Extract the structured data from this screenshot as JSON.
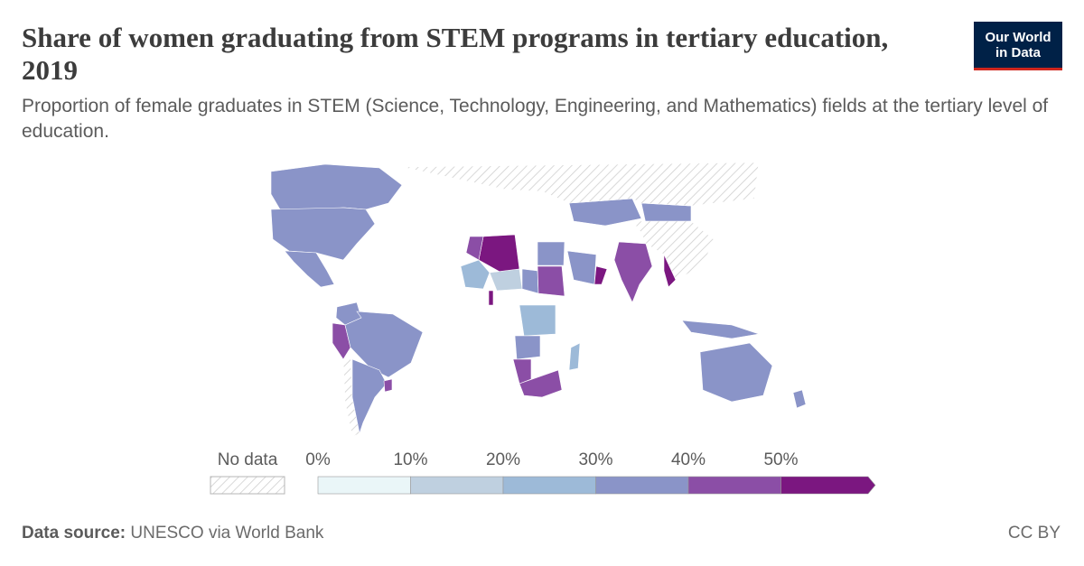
{
  "header": {
    "title": "Share of women graduating from STEM programs in tertiary education, 2019",
    "subtitle": "Proportion of female graduates in STEM (Science, Technology, Engineering, and Mathematics) fields at the tertiary level of education.",
    "logo_line1": "Our World",
    "logo_line2": "in Data"
  },
  "footer": {
    "source_label": "Data source:",
    "source_value": "UNESCO via World Bank",
    "license": "CC BY"
  },
  "colors": {
    "no_data_hatch": "#cfcfcf",
    "bins": [
      "#eaf6f8",
      "#bfd0e0",
      "#9dbad8",
      "#8a94c8",
      "#8b4ea6",
      "#7b1780"
    ],
    "title": "#3c3c3c",
    "logo_bg": "#002147",
    "logo_accent": "#ce261e"
  },
  "legend": {
    "no_data_label": "No data",
    "tick_labels": [
      "0%",
      "10%",
      "20%",
      "30%",
      "40%",
      "50%"
    ]
  },
  "chart_data": {
    "type": "choropleth",
    "title": "Share of women graduating from STEM programs in tertiary education, 2019",
    "unit": "%",
    "bins": [
      [
        0,
        10
      ],
      [
        10,
        20
      ],
      [
        20,
        30
      ],
      [
        30,
        40
      ],
      [
        40,
        50
      ],
      [
        50,
        60
      ]
    ],
    "regions": [
      {
        "name": "Canada",
        "bin": 3
      },
      {
        "name": "United States",
        "bin": 3
      },
      {
        "name": "Mexico",
        "bin": 3
      },
      {
        "name": "Colombia",
        "bin": 3
      },
      {
        "name": "Peru",
        "bin": 4
      },
      {
        "name": "Brazil",
        "bin": 3
      },
      {
        "name": "Chile",
        "bin": null
      },
      {
        "name": "Argentina",
        "bin": 3
      },
      {
        "name": "Uruguay",
        "bin": 4
      },
      {
        "name": "Algeria",
        "bin": 5
      },
      {
        "name": "Morocco",
        "bin": 4
      },
      {
        "name": "Mali",
        "bin": 2
      },
      {
        "name": "Niger",
        "bin": 1
      },
      {
        "name": "Benin",
        "bin": 5
      },
      {
        "name": "Chad",
        "bin": 3
      },
      {
        "name": "Sudan",
        "bin": 4
      },
      {
        "name": "Egypt",
        "bin": 3
      },
      {
        "name": "Saudi Arabia",
        "bin": 3
      },
      {
        "name": "Oman",
        "bin": 5
      },
      {
        "name": "DR Congo",
        "bin": 2
      },
      {
        "name": "Angola",
        "bin": 3
      },
      {
        "name": "Namibia",
        "bin": 4
      },
      {
        "name": "South Africa",
        "bin": 4
      },
      {
        "name": "Madagascar",
        "bin": 2
      },
      {
        "name": "India",
        "bin": 4
      },
      {
        "name": "Myanmar",
        "bin": 5
      },
      {
        "name": "Kazakhstan",
        "bin": 3
      },
      {
        "name": "Mongolia",
        "bin": 3
      },
      {
        "name": "Russia",
        "bin": null
      },
      {
        "name": "China",
        "bin": null
      },
      {
        "name": "Indonesia",
        "bin": 3
      },
      {
        "name": "Australia",
        "bin": 3
      },
      {
        "name": "New Zealand",
        "bin": 3
      }
    ]
  }
}
